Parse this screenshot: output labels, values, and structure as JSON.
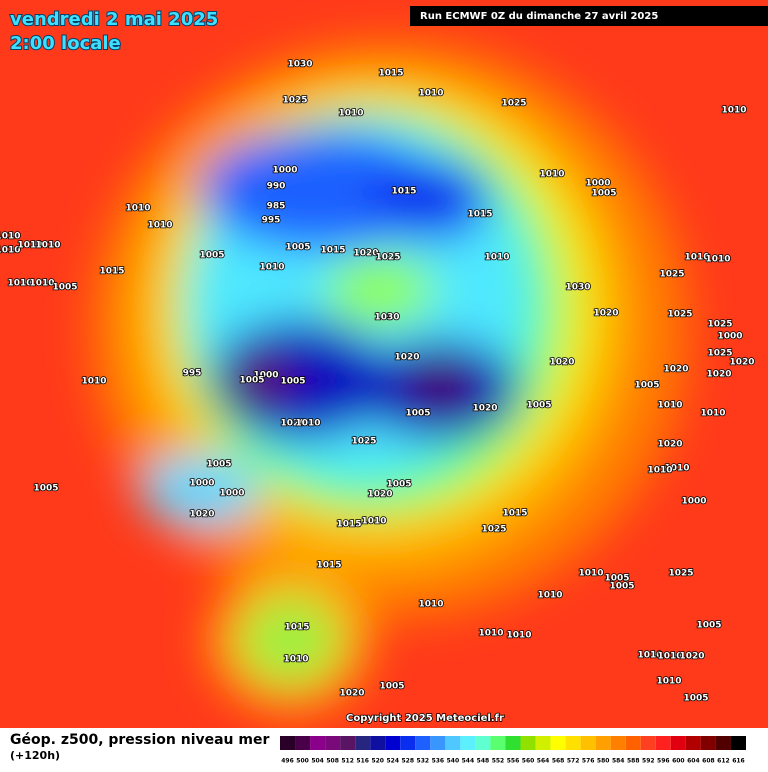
{
  "header": {
    "title": "vendredi 2 mai 2025",
    "subtitle": "2:00 locale",
    "run": "Run ECMWF 0Z du dimanche 27 avril 2025"
  },
  "map": {
    "copyright": "Copyright 2025 Meteociel.fr",
    "isobar_labels": [
      "1030",
      "1015",
      "1010",
      "1025",
      "1010",
      "1025",
      "1010",
      "1000",
      "990",
      "985",
      "995",
      "1015",
      "1010",
      "1000",
      "1005",
      "1015",
      "1010",
      "1010",
      "1010",
      "1010",
      "1010",
      "1010",
      "1015",
      "1005",
      "1005",
      "1015",
      "1020",
      "1025",
      "1010",
      "1010",
      "1010",
      "1010",
      "1010",
      "1010",
      "1005",
      "1025",
      "1030",
      "1030",
      "1020",
      "1025",
      "1025",
      "1000",
      "1020",
      "1020",
      "1025",
      "1020",
      "995",
      "1000",
      "1005",
      "1005",
      "1010",
      "1020",
      "1020",
      "1005",
      "1010",
      "1005",
      "1005",
      "1020",
      "1010",
      "1020",
      "1010",
      "1025",
      "1020",
      "1010",
      "1010",
      "1005",
      "1000",
      "1000",
      "1005",
      "1020",
      "1005",
      "1000",
      "1020",
      "1015",
      "1010",
      "1015",
      "1025",
      "1015",
      "1010",
      "1005",
      "1005",
      "1025",
      "1010",
      "1010",
      "1015",
      "1010",
      "1010",
      "1005",
      "1010",
      "1010",
      "1010",
      "1020",
      "1020",
      "1005",
      "1010",
      "1005"
    ]
  },
  "footer": {
    "label": "Géop. z500, pression niveau mer",
    "lead": "(+120h)"
  },
  "legend": {
    "values": [
      496,
      500,
      504,
      508,
      512,
      516,
      520,
      524,
      528,
      532,
      536,
      540,
      544,
      548,
      552,
      556,
      560,
      564,
      568,
      572,
      576,
      580,
      584,
      588,
      592,
      596,
      600,
      604,
      608,
      612,
      616
    ],
    "colors": [
      "#2a0028",
      "#4a0048",
      "#8a008a",
      "#7a0a7a",
      "#5a1464",
      "#262680",
      "#1010a0",
      "#0000d0",
      "#0a2ef0",
      "#1e60ff",
      "#3a96ff",
      "#4ec8ff",
      "#5cf0ff",
      "#60ffd0",
      "#5aff70",
      "#30e030",
      "#90e000",
      "#d0f000",
      "#ffff00",
      "#ffe000",
      "#ffc000",
      "#ffa000",
      "#ff8000",
      "#ff6000",
      "#ff4020",
      "#ff2020",
      "#e00010",
      "#b00000",
      "#800000",
      "#500000",
      "#000000"
    ]
  }
}
